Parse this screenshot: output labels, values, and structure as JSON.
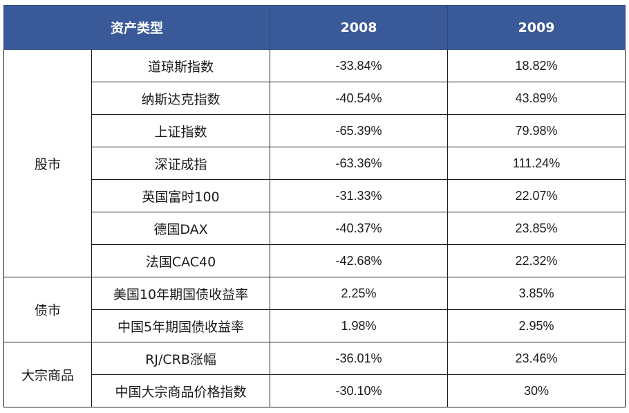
{
  "table": {
    "headers": [
      "资产类型",
      "2008",
      "2009"
    ],
    "groups": [
      {
        "category": "股市",
        "rows": [
          {
            "name": "道琼斯指数",
            "v2008": "-33.84%",
            "v2009": "18.82%"
          },
          {
            "name": "纳斯达克指数",
            "v2008": "-40.54%",
            "v2009": "43.89%"
          },
          {
            "name": "上证指数",
            "v2008": "-65.39%",
            "v2009": "79.98%"
          },
          {
            "name": "深证成指",
            "v2008": "-63.36%",
            "v2009": "111.24%"
          },
          {
            "name": "英国富时100",
            "v2008": "-31.33%",
            "v2009": "22.07%"
          },
          {
            "name": "德国DAX",
            "v2008": "-40.37%",
            "v2009": "23.85%"
          },
          {
            "name": "法国CAC40",
            "v2008": "-42.68%",
            "v2009": "22.32%"
          }
        ]
      },
      {
        "category": "债市",
        "rows": [
          {
            "name": "美国10年期国债收益率",
            "v2008": "2.25%",
            "v2009": "3.85%"
          },
          {
            "name": "中国5年期国债收益率",
            "v2008": "1.98%",
            "v2009": "2.95%"
          }
        ]
      },
      {
        "category": "大宗商品",
        "rows": [
          {
            "name": "RJ/CRB涨幅",
            "v2008": "-36.01%",
            "v2009": "23.46%"
          },
          {
            "name": "中国大宗商品价格指数",
            "v2008": "-30.10%",
            "v2009": "30%"
          }
        ]
      }
    ]
  },
  "colors": {
    "header_bg": "#3a5998",
    "header_text": "#ffffff",
    "border": "#1a1a1a"
  }
}
